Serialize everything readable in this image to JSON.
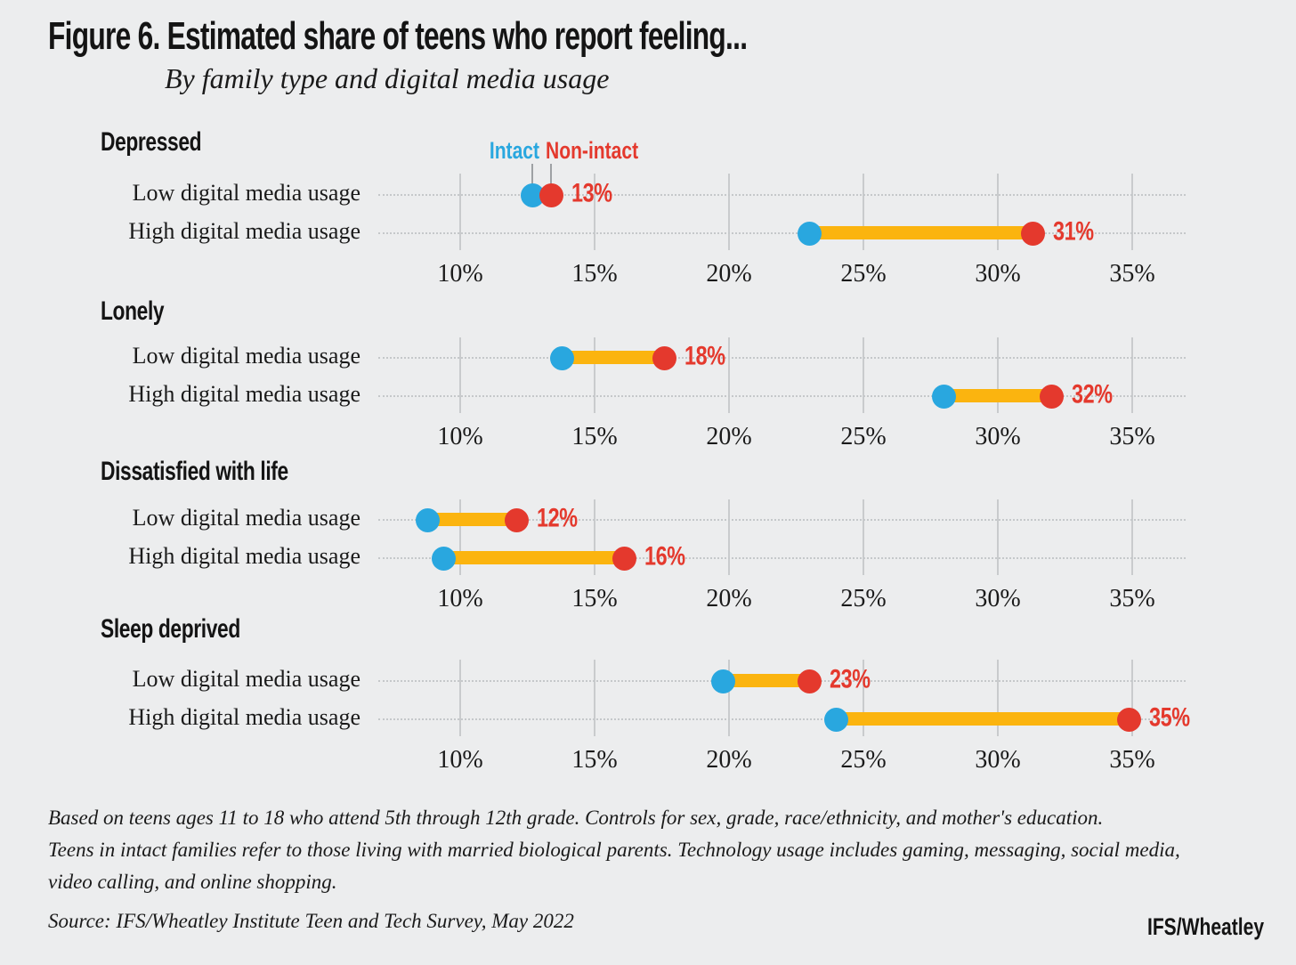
{
  "colors": {
    "intact": "#29A7DF",
    "nonintact": "#E4392D",
    "bar": "#FBB40F",
    "background": "#ECEDEE",
    "gridline": "#C9CBCD",
    "dotted_line": "#C5C8CA",
    "text": "#141414"
  },
  "chart_data": {
    "type": "dumbbell",
    "title": "Figure 6. Estimated share of teens who report feeling...",
    "subtitle": "By family type and digital media usage",
    "legend": [
      {
        "name": "Intact",
        "color": "#29A7DF"
      },
      {
        "name": "Non-intact",
        "color": "#E4392D"
      }
    ],
    "legend_position": "above first panel dots",
    "x_axis": {
      "tick_labels": [
        "10%",
        "15%",
        "20%",
        "25%",
        "30%",
        "35%"
      ],
      "tick_values": [
        10,
        15,
        20,
        25,
        30,
        35
      ],
      "min": 10,
      "max": 35,
      "unit": "percent",
      "grid": true
    },
    "panels": [
      {
        "title": "Depressed",
        "rows": [
          {
            "label": "Low digital media usage",
            "intact": {
              "label": "13%",
              "value": 13,
              "pos": 12.7
            },
            "nonintact": {
              "label": "13%",
              "value": 13,
              "pos": 13.4
            }
          },
          {
            "label": "High digital media usage",
            "intact": {
              "label": "23%",
              "value": 23,
              "pos": 23
            },
            "nonintact": {
              "label": "31%",
              "value": 31,
              "pos": 31.3
            }
          }
        ]
      },
      {
        "title": "Lonely",
        "rows": [
          {
            "label": "Low digital media usage",
            "intact": {
              "label": "14%",
              "value": 14,
              "pos": 13.8
            },
            "nonintact": {
              "label": "18%",
              "value": 18,
              "pos": 17.6
            }
          },
          {
            "label": "High digital media usage",
            "intact": {
              "label": "28%",
              "value": 28,
              "pos": 28
            },
            "nonintact": {
              "label": "32%",
              "value": 32,
              "pos": 32
            }
          }
        ]
      },
      {
        "title": "Dissatisfied with life",
        "rows": [
          {
            "label": "Low digital media usage",
            "intact": {
              "label": "9%",
              "value": 9,
              "pos": 8.8
            },
            "nonintact": {
              "label": "12%",
              "value": 12,
              "pos": 12.1
            }
          },
          {
            "label": "High digital media usage",
            "intact": {
              "label": "9%",
              "value": 9,
              "pos": 9.4
            },
            "nonintact": {
              "label": "16%",
              "value": 16,
              "pos": 16.1
            }
          }
        ]
      },
      {
        "title": "Sleep deprived",
        "rows": [
          {
            "label": "Low digital media usage",
            "intact": {
              "label": "20%",
              "value": 20,
              "pos": 19.8
            },
            "nonintact": {
              "label": "23%",
              "value": 23,
              "pos": 23
            }
          },
          {
            "label": "High digital media usage",
            "intact": {
              "label": "24%",
              "value": 24,
              "pos": 24
            },
            "nonintact": {
              "label": "35%",
              "value": 35,
              "pos": 34.9
            }
          }
        ]
      }
    ],
    "notes": [
      "Based on teens ages 11 to 18 who attend 5th through 12th grade. Controls for sex, grade, race/ethnicity, and mother's education.",
      "Teens in intact families refer to those living with married biological parents. Technology usage includes gaming, messaging, social media,",
      "video calling, and online shopping."
    ],
    "source": "Source: IFS/Wheatley Institute Teen and Tech Survey, May 2022",
    "brand": "IFS/Wheatley"
  }
}
